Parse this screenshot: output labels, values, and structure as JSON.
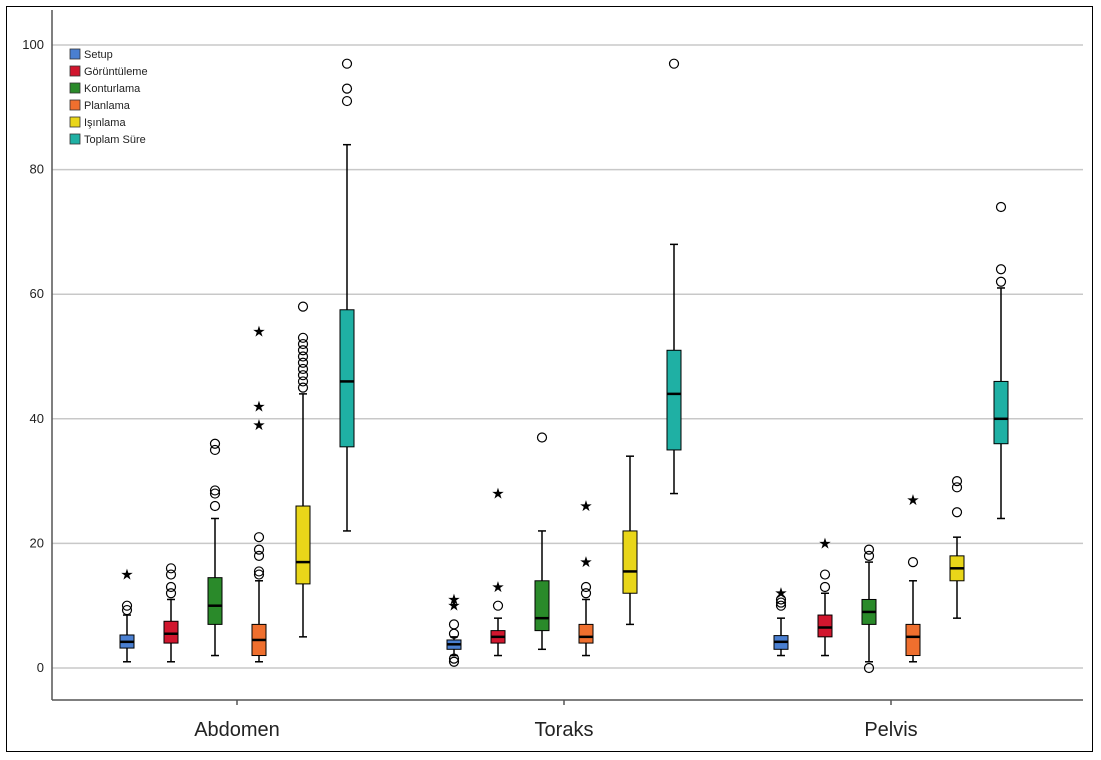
{
  "chart_data": {
    "type": "boxplot",
    "categories": [
      "Abdomen",
      "Toraks",
      "Pelvis"
    ],
    "y_ticks": [
      "0",
      "20",
      "40",
      "60",
      "80",
      "100"
    ],
    "ylim": [
      -5,
      102
    ],
    "grid": true,
    "legend_position": "top-left",
    "series": [
      {
        "name": "Setup",
        "color": "#4a7fd1",
        "boxes": [
          {
            "whisker_low": 1,
            "q1": 3.2,
            "median": 4.2,
            "q3": 5.3,
            "whisker_high": 8.5,
            "outliers": [
              9.3,
              10
            ],
            "extremes": [
              15
            ]
          },
          {
            "whisker_low": 2,
            "q1": 3,
            "median": 3.8,
            "q3": 4.5,
            "whisker_high": 5,
            "outliers": [
              1,
              1.5,
              5.5,
              7
            ],
            "extremes": [
              10,
              11
            ]
          },
          {
            "whisker_low": 2,
            "q1": 3,
            "median": 4.2,
            "q3": 5.2,
            "whisker_high": 8,
            "outliers": [
              10,
              10.5,
              11
            ],
            "extremes": [
              12
            ]
          }
        ]
      },
      {
        "name": "Görüntüleme",
        "color": "#d1162e",
        "boxes": [
          {
            "whisker_low": 1,
            "q1": 4,
            "median": 5.5,
            "q3": 7.5,
            "whisker_high": 11,
            "outliers": [
              12,
              13,
              15,
              16
            ],
            "extremes": []
          },
          {
            "whisker_low": 2,
            "q1": 4,
            "median": 5,
            "q3": 6,
            "whisker_high": 8,
            "outliers": [
              10
            ],
            "extremes": [
              13,
              28
            ]
          },
          {
            "whisker_low": 2,
            "q1": 5,
            "median": 6.5,
            "q3": 8.5,
            "whisker_high": 12,
            "outliers": [
              13,
              15
            ],
            "extremes": [
              20
            ]
          }
        ]
      },
      {
        "name": "Konturlama",
        "color": "#2a8a2a",
        "boxes": [
          {
            "whisker_low": 2,
            "q1": 7,
            "median": 10,
            "q3": 14.5,
            "whisker_high": 24,
            "outliers": [
              26,
              28,
              28.5,
              35,
              36
            ],
            "extremes": []
          },
          {
            "whisker_low": 3,
            "q1": 6,
            "median": 8,
            "q3": 14,
            "whisker_high": 22,
            "outliers": [
              37
            ],
            "extremes": []
          },
          {
            "whisker_low": 1,
            "q1": 7,
            "median": 9,
            "q3": 11,
            "whisker_high": 17,
            "outliers": [
              0,
              18,
              19
            ],
            "extremes": []
          }
        ]
      },
      {
        "name": "Planlama",
        "color": "#ef6f2e",
        "boxes": [
          {
            "whisker_low": 1,
            "q1": 2,
            "median": 4.5,
            "q3": 7,
            "whisker_high": 14,
            "outliers": [
              15,
              15.5,
              18,
              19,
              21
            ],
            "extremes": [
              39,
              42,
              54
            ]
          },
          {
            "whisker_low": 2,
            "q1": 4,
            "median": 5,
            "q3": 7,
            "whisker_high": 11,
            "outliers": [
              12,
              13
            ],
            "extremes": [
              17,
              26
            ]
          },
          {
            "whisker_low": 1,
            "q1": 2,
            "median": 5,
            "q3": 7,
            "whisker_high": 14,
            "outliers": [
              17
            ],
            "extremes": [
              27
            ]
          }
        ]
      },
      {
        "name": "Işınlama",
        "color": "#e9d619",
        "boxes": [
          {
            "whisker_low": 5,
            "q1": 13.5,
            "median": 17,
            "q3": 26,
            "whisker_high": 44,
            "outliers": [
              45,
              46,
              47,
              48,
              49,
              50,
              51,
              52,
              53,
              58
            ],
            "extremes": []
          },
          {
            "whisker_low": 7,
            "q1": 12,
            "median": 15.5,
            "q3": 22,
            "whisker_high": 34,
            "outliers": [],
            "extremes": []
          },
          {
            "whisker_low": 8,
            "q1": 14,
            "median": 16,
            "q3": 18,
            "whisker_high": 21,
            "outliers": [
              25,
              29,
              30
            ],
            "extremes": []
          }
        ]
      },
      {
        "name": "Toplam Süre",
        "color": "#1fb0a4",
        "boxes": [
          {
            "whisker_low": 22,
            "q1": 35.5,
            "median": 46,
            "q3": 57.5,
            "whisker_high": 84,
            "outliers": [
              91,
              93,
              97
            ],
            "extremes": []
          },
          {
            "whisker_low": 28,
            "q1": 35,
            "median": 44,
            "q3": 51,
            "whisker_high": 68,
            "outliers": [
              97
            ],
            "extremes": []
          },
          {
            "whisker_low": 24,
            "q1": 36,
            "median": 40,
            "q3": 46,
            "whisker_high": 61,
            "outliers": [
              62,
              64,
              74
            ],
            "extremes": []
          }
        ]
      }
    ]
  }
}
